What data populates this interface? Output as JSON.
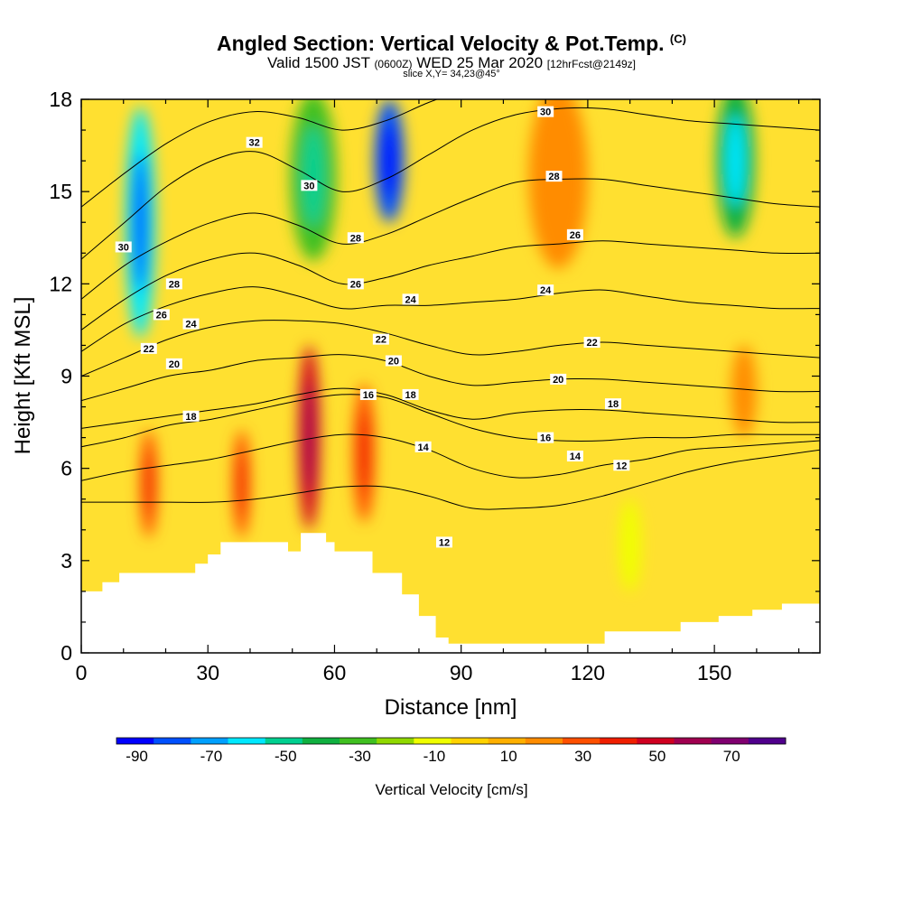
{
  "title": {
    "line1": "Angled Section: Vertical Velocity & Pot.Temp.",
    "copyright": "(C)",
    "line2_a": "Valid 1500 JST",
    "line2_b": "(0600Z)",
    "line2_c": "WED 25 Mar 2020",
    "line2_d": "[12hrFcst@2149z]",
    "line3": "slice X,Y= 34,23@45°"
  },
  "chart_data": {
    "type": "heatmap",
    "xlabel": "Distance [nm]",
    "ylabel": "Height [Kft MSL]",
    "xlim": [
      0,
      175
    ],
    "ylim": [
      0,
      18
    ],
    "xticks": [
      0,
      30,
      60,
      90,
      120,
      150
    ],
    "yticks": [
      0,
      3,
      6,
      9,
      12,
      15,
      18
    ],
    "colorbar": {
      "label": "Vertical Velocity [cm/s]",
      "tick_labels": [
        "-90",
        "-70",
        "-50",
        "-30",
        "-10",
        "10",
        "30",
        "50",
        "70"
      ],
      "colors": [
        "#0000ff",
        "#0050ff",
        "#00a0ff",
        "#00e8ff",
        "#00d090",
        "#10b040",
        "#40c020",
        "#90d800",
        "#f0ff00",
        "#ffd200",
        "#ffb000",
        "#ff8c00",
        "#ff5000",
        "#f01e00",
        "#d00020",
        "#a00050",
        "#800070",
        "#50008c"
      ]
    },
    "terrain_kft": [
      [
        0,
        2
      ],
      [
        5,
        2
      ],
      [
        5,
        2.3
      ],
      [
        9,
        2.3
      ],
      [
        9,
        2.6
      ],
      [
        27,
        2.6
      ],
      [
        27,
        2.9
      ],
      [
        30,
        2.9
      ],
      [
        30,
        3.2
      ],
      [
        33,
        3.2
      ],
      [
        33,
        3.6
      ],
      [
        49,
        3.6
      ],
      [
        49,
        3.3
      ],
      [
        52,
        3.3
      ],
      [
        52,
        3.9
      ],
      [
        58,
        3.9
      ],
      [
        58,
        3.6
      ],
      [
        60,
        3.6
      ],
      [
        60,
        3.3
      ],
      [
        69,
        3.3
      ],
      [
        69,
        2.6
      ],
      [
        76,
        2.6
      ],
      [
        76,
        1.9
      ],
      [
        80,
        1.9
      ],
      [
        80,
        1.2
      ],
      [
        84,
        1.2
      ],
      [
        84,
        0.5
      ],
      [
        87,
        0.5
      ],
      [
        87,
        0.3
      ],
      [
        124,
        0.3
      ],
      [
        124,
        0.7
      ],
      [
        142,
        0.7
      ],
      [
        142,
        1.0
      ],
      [
        151,
        1.0
      ],
      [
        151,
        1.2
      ],
      [
        159,
        1.2
      ],
      [
        159,
        1.4
      ],
      [
        166,
        1.4
      ],
      [
        166,
        1.6
      ],
      [
        175,
        1.6
      ]
    ],
    "updraft_cells": [
      {
        "x": 16,
        "y": 5.5,
        "w": 4,
        "h": 3.5,
        "value": 30
      },
      {
        "x": 38,
        "y": 5.5,
        "w": 4,
        "h": 3.5,
        "value": 30
      },
      {
        "x": 54,
        "y": 7.0,
        "w": 5,
        "h": 6.0,
        "value": 50
      },
      {
        "x": 67,
        "y": 6.5,
        "w": 5,
        "h": 4.5,
        "value": 30
      },
      {
        "x": 113,
        "y": 15.5,
        "w": 14,
        "h": 6.0,
        "value": 20
      },
      {
        "x": 157,
        "y": 8.5,
        "w": 6,
        "h": 3.0,
        "value": 20
      }
    ],
    "downdraft_cells": [
      {
        "x": 14,
        "y": 14.0,
        "w": 7,
        "h": 7.5,
        "value": -60
      },
      {
        "x": 55,
        "y": 15.5,
        "w": 11,
        "h": 5.5,
        "value": -30
      },
      {
        "x": 73,
        "y": 16.0,
        "w": 7,
        "h": 4.0,
        "value": -80
      },
      {
        "x": 155,
        "y": 16.0,
        "w": 9,
        "h": 5.0,
        "value": -40
      },
      {
        "x": 130,
        "y": 3.5,
        "w": 5,
        "h": 3.0,
        "value": -10
      }
    ],
    "isentropes": [
      {
        "value": 12,
        "y": [
          4.9,
          4.9,
          4.9,
          4.9,
          5.0,
          5.2,
          5.4,
          5.4,
          5.1,
          4.7,
          4.7,
          4.8,
          5.1,
          5.5,
          5.9,
          6.2,
          6.4,
          6.6
        ]
      },
      {
        "value": 14,
        "y": [
          5.6,
          5.9,
          6.1,
          6.3,
          6.6,
          6.9,
          7.1,
          7.0,
          6.6,
          6.0,
          5.7,
          5.8,
          6.1,
          6.3,
          6.6,
          6.7,
          6.8,
          6.9
        ]
      },
      {
        "value": 16,
        "y": [
          6.7,
          7.0,
          7.4,
          7.6,
          7.9,
          8.2,
          8.4,
          8.3,
          7.8,
          7.3,
          7.0,
          6.9,
          6.9,
          7.0,
          7.0,
          7.1,
          7.1,
          7.1
        ]
      },
      {
        "value": 18,
        "y": [
          7.3,
          7.5,
          7.7,
          7.9,
          8.1,
          8.4,
          8.6,
          8.4,
          7.9,
          7.6,
          7.8,
          7.9,
          7.9,
          7.8,
          7.7,
          7.6,
          7.5,
          7.5
        ]
      },
      {
        "value": 20,
        "y": [
          8.2,
          8.6,
          9.0,
          9.2,
          9.5,
          9.6,
          9.7,
          9.5,
          9.0,
          8.7,
          8.8,
          8.9,
          8.9,
          8.8,
          8.7,
          8.6,
          8.5,
          8.5
        ]
      },
      {
        "value": 22,
        "y": [
          9.0,
          9.6,
          10.2,
          10.6,
          10.8,
          10.8,
          10.7,
          10.4,
          10.0,
          9.7,
          9.8,
          10.0,
          10.1,
          10.0,
          9.9,
          9.8,
          9.7,
          9.6
        ]
      },
      {
        "value": 24,
        "y": [
          9.8,
          10.7,
          11.3,
          11.7,
          11.9,
          11.6,
          11.2,
          11.3,
          11.3,
          11.4,
          11.5,
          11.7,
          11.8,
          11.6,
          11.4,
          11.3,
          11.2,
          11.2
        ]
      },
      {
        "value": 26,
        "y": [
          10.5,
          11.5,
          12.3,
          12.8,
          13.0,
          12.6,
          12.0,
          12.2,
          12.6,
          12.9,
          13.2,
          13.3,
          13.4,
          13.3,
          13.2,
          13.1,
          13.0,
          13.0
        ]
      },
      {
        "value": 28,
        "y": [
          11.5,
          12.6,
          13.4,
          14.0,
          14.3,
          13.9,
          13.3,
          13.6,
          14.2,
          14.8,
          15.3,
          15.4,
          15.4,
          15.2,
          15.0,
          14.8,
          14.6,
          14.5
        ]
      },
      {
        "value": 30,
        "y": [
          12.8,
          14.0,
          15.2,
          16.0,
          16.3,
          15.7,
          15.0,
          15.4,
          16.2,
          17.0,
          17.5,
          17.7,
          17.7,
          17.5,
          17.3,
          17.2,
          17.1,
          17.0
        ]
      },
      {
        "value": 32,
        "y": [
          14.5,
          15.6,
          16.6,
          17.3,
          17.6,
          17.4,
          17.0,
          17.3,
          17.9,
          18.4,
          18.8,
          19.0,
          19.0,
          18.9,
          18.8,
          18.7,
          18.6,
          18.5
        ]
      }
    ],
    "contour_labels": [
      {
        "text": "30",
        "x": 10,
        "y": 13.2
      },
      {
        "text": "28",
        "x": 22,
        "y": 12.0
      },
      {
        "text": "26",
        "x": 19,
        "y": 11.0
      },
      {
        "text": "24",
        "x": 26,
        "y": 10.7
      },
      {
        "text": "22",
        "x": 16,
        "y": 9.9
      },
      {
        "text": "20",
        "x": 22,
        "y": 9.4
      },
      {
        "text": "18",
        "x": 26,
        "y": 7.7
      },
      {
        "text": "32",
        "x": 41,
        "y": 16.6
      },
      {
        "text": "30",
        "x": 54,
        "y": 15.2
      },
      {
        "text": "28",
        "x": 65,
        "y": 13.5
      },
      {
        "text": "26",
        "x": 65,
        "y": 12.0
      },
      {
        "text": "24",
        "x": 78,
        "y": 11.5
      },
      {
        "text": "22",
        "x": 71,
        "y": 10.2
      },
      {
        "text": "20",
        "x": 74,
        "y": 9.5
      },
      {
        "text": "18",
        "x": 78,
        "y": 8.4
      },
      {
        "text": "16",
        "x": 68,
        "y": 8.4
      },
      {
        "text": "14",
        "x": 81,
        "y": 6.7
      },
      {
        "text": "12",
        "x": 86,
        "y": 3.6
      },
      {
        "text": "30",
        "x": 110,
        "y": 17.6
      },
      {
        "text": "28",
        "x": 112,
        "y": 15.5
      },
      {
        "text": "26",
        "x": 117,
        "y": 13.6
      },
      {
        "text": "24",
        "x": 110,
        "y": 11.8
      },
      {
        "text": "22",
        "x": 121,
        "y": 10.1
      },
      {
        "text": "20",
        "x": 113,
        "y": 8.9
      },
      {
        "text": "18",
        "x": 126,
        "y": 8.1
      },
      {
        "text": "16",
        "x": 110,
        "y": 7.0
      },
      {
        "text": "14",
        "x": 117,
        "y": 6.4
      },
      {
        "text": "12",
        "x": 128,
        "y": 6.1
      }
    ]
  }
}
